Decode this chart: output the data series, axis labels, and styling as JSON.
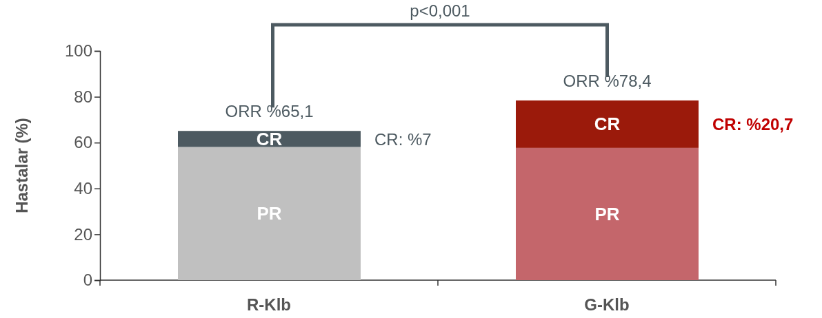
{
  "chart_data": {
    "type": "bar",
    "stacked": true,
    "categories": [
      "R-Klb",
      "G-Klb"
    ],
    "series": [
      {
        "name": "PR",
        "colors": [
          "#c0c0c0",
          "#c4666b"
        ],
        "values": [
          58.1,
          57.7
        ]
      },
      {
        "name": "CR",
        "colors": [
          "#4d5a61",
          "#9b1a0b"
        ],
        "values": [
          7,
          20.7
        ]
      }
    ],
    "ylabel": "Hastalar (%)",
    "ylim": [
      0,
      100
    ],
    "yticks": [
      0,
      20,
      40,
      60,
      80,
      100
    ],
    "grid": false,
    "annotations": [
      {
        "text": "ORR %65,1",
        "x": "R-Klb",
        "y": 65.1
      },
      {
        "text": "ORR %78,4",
        "x": "G-Klb",
        "y": 78.4
      },
      "CR: %7",
      "CR: %20,7",
      "p<0,001"
    ]
  }
}
